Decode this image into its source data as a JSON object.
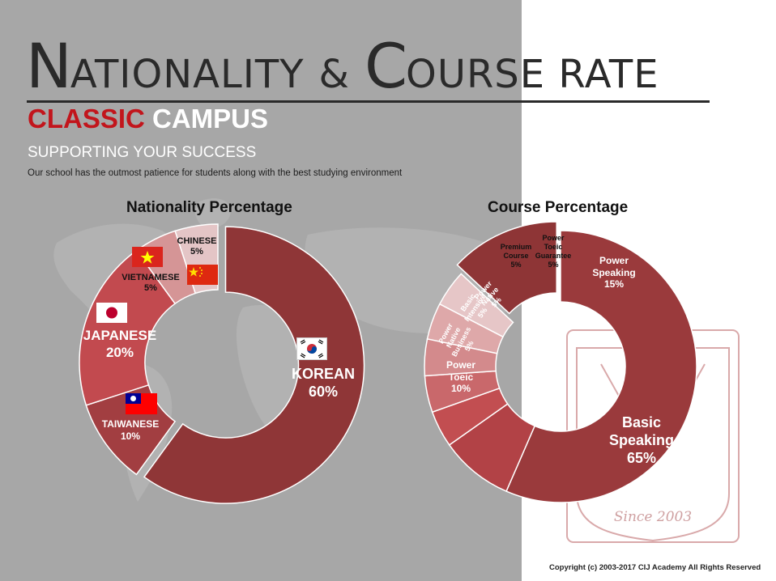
{
  "header": {
    "title_initial_1": "N",
    "title_rest_1": "ATIONALITY",
    "title_amp": "&",
    "title_initial_2": "C",
    "title_rest_2": "OURSE RATE",
    "campus_word_1": "CLASSIC",
    "campus_word_2": "CAMPUS",
    "supporting": "SUPPORTING YOUR SUCCESS",
    "description": "Our school has the outmost patience for students along with the best studying environment"
  },
  "seal": {
    "text": "Since 2003"
  },
  "colors": {
    "left_bg": "#a7a7a7",
    "accent_red": "#c2151c",
    "korean": "#8f3637",
    "taiwanese": "#a23e41",
    "japanese": "#c24a4f",
    "vietnamese": "#d59596",
    "chinese": "#e4c5c6",
    "basic_speaking": "#9a3a3c",
    "power_toeic": "#b24246",
    "power_native_business": "#c24e51",
    "basic_intensive": "#c9686b",
    "power_native": "#d38a8c",
    "premium_course": "#dea8a9",
    "power_toeic_guarantee": "#e6c6c7",
    "power_speaking": "#8e3536"
  },
  "icons": {
    "korea_flag": "korea-flag-icon",
    "japan_flag": "japan-flag-icon",
    "taiwan_flag": "taiwan-flag-icon",
    "vietnam_flag": "vietnam-flag-icon",
    "china_flag": "china-flag-icon"
  },
  "chart_data": [
    {
      "type": "pie",
      "title": "Nationality Percentage",
      "categories": [
        "KOREAN",
        "TAIWANESE",
        "JAPANESE",
        "VIETNAMESE",
        "CHINESE"
      ],
      "values": [
        60,
        10,
        20,
        5,
        5
      ],
      "labels": {
        "KOREAN": [
          "KOREAN",
          "60%"
        ],
        "TAIWANESE": [
          "TAIWANESE",
          "10%"
        ],
        "JAPANESE": [
          "JAPANESE",
          "20%"
        ],
        "VIETNAMESE": [
          "VIETNAMESE",
          "5%"
        ],
        "CHINESE": [
          "CHINESE",
          "5%"
        ]
      },
      "exploded": "KOREAN"
    },
    {
      "type": "pie",
      "title": "Course Percentage",
      "categories": [
        "Basic Speaking",
        "Power Toeic",
        "Power Native Business",
        "Basic Intensive",
        "Power Native",
        "Premium Course",
        "Power Toeic Guarantee",
        "Power Speaking"
      ],
      "values": [
        65,
        10,
        5,
        5,
        5,
        5,
        5,
        15
      ],
      "labels": {
        "Basic Speaking": [
          "Basic",
          "Speaking",
          "65%"
        ],
        "Power Toeic": [
          "Power",
          "Toeic",
          "10%"
        ],
        "Power Native Business": [
          "Power",
          "Native",
          "Business",
          "5%"
        ],
        "Basic Intensive": [
          "Basic",
          "Intensive",
          "5%"
        ],
        "Power Native": [
          "Power",
          "Native",
          "5%"
        ],
        "Premium Course": [
          "Premium",
          "Course",
          "5%"
        ],
        "Power Toeic Guarantee": [
          "Power",
          "Toeic",
          "Guarantee",
          "5%"
        ],
        "Power Speaking": [
          "Power",
          "Speaking",
          "15%"
        ]
      },
      "exploded": "Power Speaking"
    }
  ],
  "footer": {
    "copyright": "Copyright (c) 2003-2017 CIJ Academy All Rights Reserved"
  }
}
